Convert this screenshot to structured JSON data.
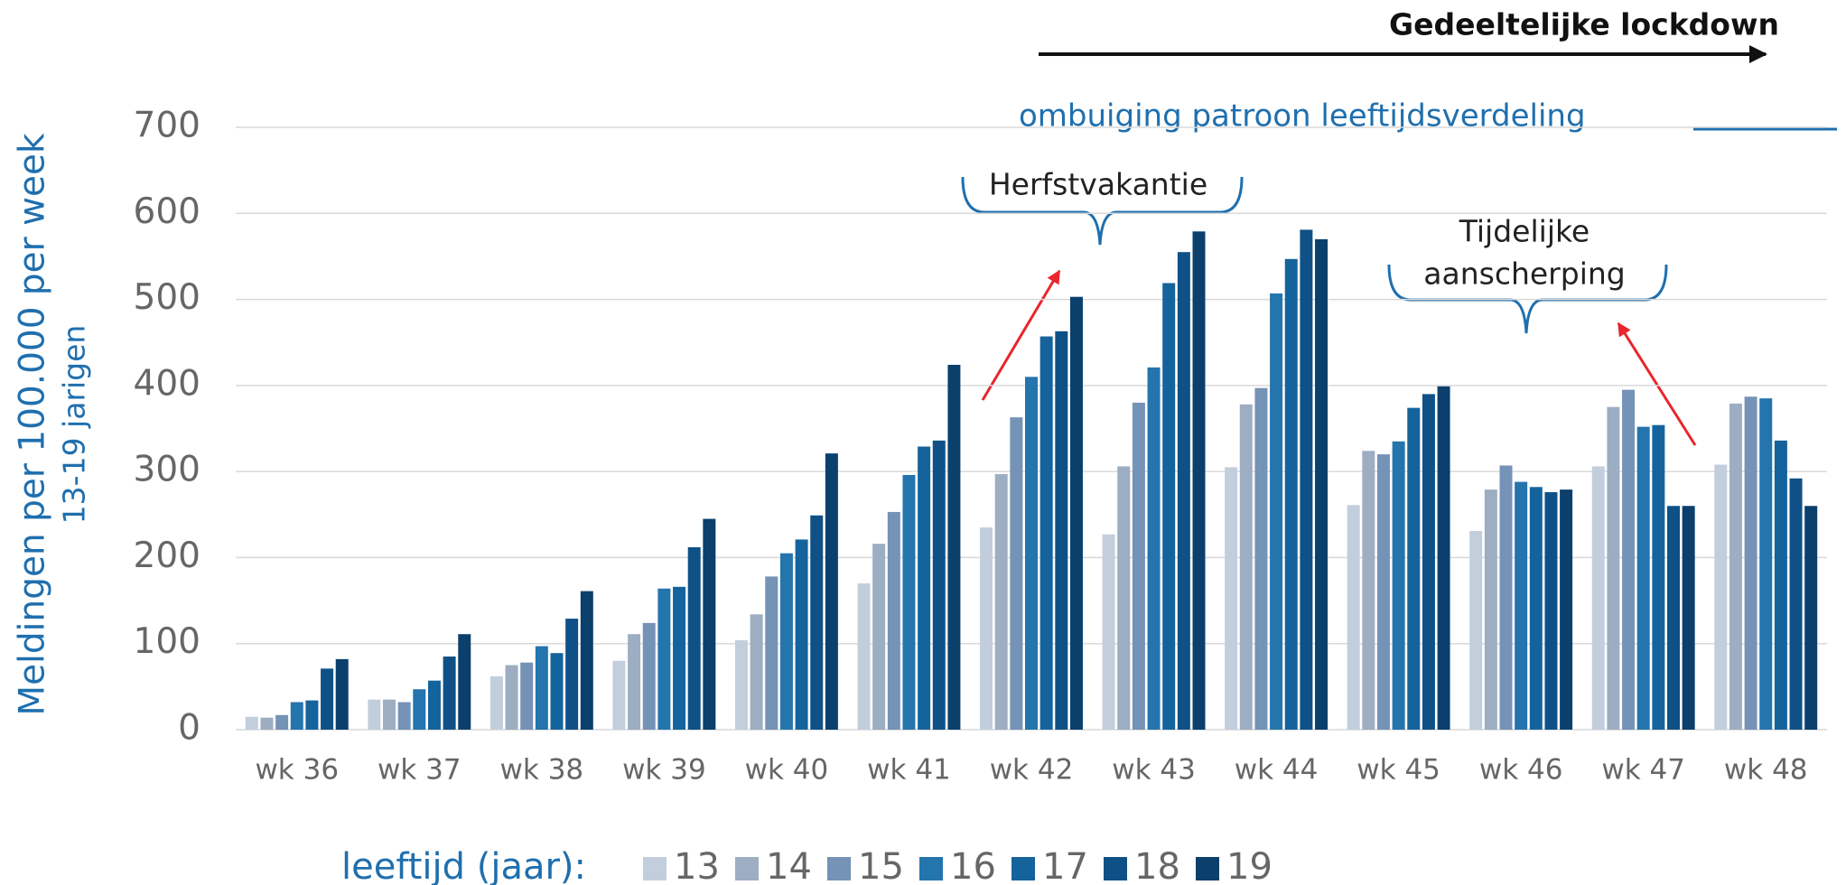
{
  "chart_data": {
    "type": "bar",
    "y_label": "Meldingen per 100.000 per week",
    "y_sublabel": "13-19 jarigen",
    "legend_title": "leeftijd (jaar):",
    "annotations": {
      "lockdown": "Gedeeltelijke lockdown",
      "pattern": "ombuiging patroon leeftijdsverdeling",
      "holiday": "Herfstvakantie",
      "tightening": [
        "Tijdelijke",
        "aanscherping"
      ]
    },
    "categories": [
      "wk 36",
      "wk 37",
      "wk 38",
      "wk 39",
      "wk 40",
      "wk 41",
      "wk 42",
      "wk 43",
      "wk 44",
      "wk 45",
      "wk 46",
      "wk 47",
      "wk 48"
    ],
    "series": [
      {
        "name": "13",
        "color": "#c3cedc",
        "values": [
          15,
          35,
          62,
          80,
          104,
          170,
          235,
          227,
          305,
          261,
          231,
          306,
          308
        ]
      },
      {
        "name": "14",
        "color": "#9dadc2",
        "values": [
          14,
          35,
          75,
          111,
          134,
          216,
          297,
          306,
          378,
          324,
          279,
          375,
          379
        ]
      },
      {
        "name": "15",
        "color": "#7592b7",
        "values": [
          17,
          32,
          78,
          124,
          178,
          253,
          363,
          380,
          397,
          320,
          307,
          395,
          387
        ]
      },
      {
        "name": "16",
        "color": "#2474ad",
        "values": [
          32,
          47,
          97,
          164,
          205,
          296,
          410,
          421,
          507,
          335,
          288,
          352,
          385
        ]
      },
      {
        "name": "17",
        "color": "#15639c",
        "values": [
          34,
          57,
          89,
          166,
          221,
          329,
          457,
          519,
          547,
          374,
          282,
          354,
          336
        ]
      },
      {
        "name": "18",
        "color": "#0f5186",
        "values": [
          71,
          85,
          129,
          212,
          249,
          336,
          463,
          555,
          581,
          390,
          276,
          260,
          292
        ]
      },
      {
        "name": "19",
        "color": "#0b3f6c",
        "values": [
          82,
          111,
          161,
          245,
          321,
          424,
          503,
          579,
          570,
          399,
          279,
          260,
          260
        ]
      }
    ],
    "ylim": [
      0,
      700
    ],
    "yticks": [
      0,
      100,
      200,
      300,
      400,
      500,
      600,
      700
    ],
    "grid": true
  }
}
